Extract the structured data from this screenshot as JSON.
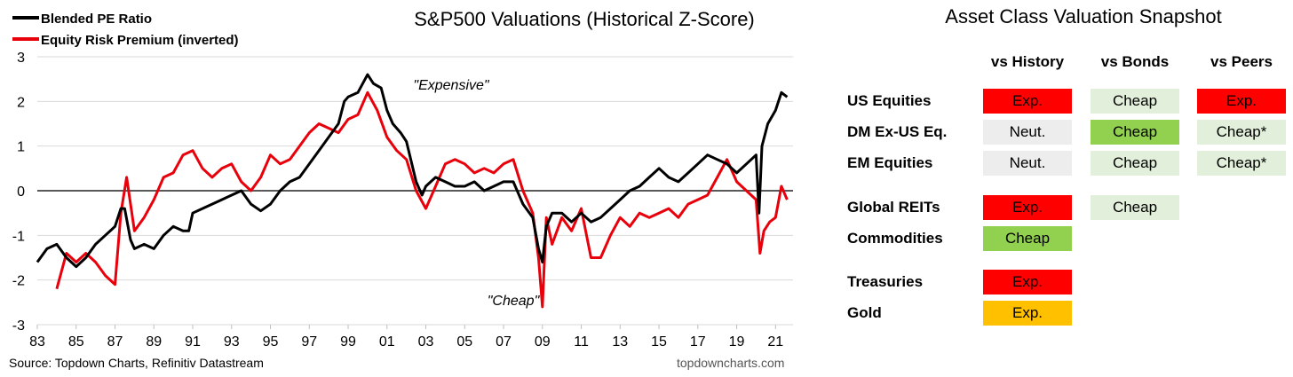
{
  "chart_data": {
    "type": "line",
    "title": "S&P500 Valuations (Historical Z-Score)",
    "ylim": [
      -3,
      3
    ],
    "yticks": [
      3,
      2,
      1,
      0,
      -1,
      -2,
      -3
    ],
    "xlim": [
      1983,
      2021.9
    ],
    "xticks": [
      1983,
      1985,
      1987,
      1989,
      1991,
      1993,
      1995,
      1997,
      1999,
      2001,
      2003,
      2005,
      2007,
      2009,
      2011,
      2013,
      2015,
      2017,
      2019,
      2021
    ],
    "xtick_labels": [
      "83",
      "85",
      "87",
      "89",
      "91",
      "93",
      "95",
      "97",
      "99",
      "01",
      "03",
      "05",
      "07",
      "09",
      "11",
      "13",
      "15",
      "17",
      "19",
      "21"
    ],
    "grid": true,
    "legend_position": "top-left",
    "annotations": [
      "\"Expensive\"",
      "\"Cheap\""
    ],
    "series": [
      {
        "name": "Blended PE Ratio",
        "color": "#000000",
        "x": [
          1983.0,
          1983.5,
          1984.0,
          1984.5,
          1985.0,
          1985.5,
          1986.0,
          1986.5,
          1987.0,
          1987.3,
          1987.5,
          1987.8,
          1988.0,
          1988.5,
          1989.0,
          1989.5,
          1990.0,
          1990.5,
          1990.8,
          1991.0,
          1991.5,
          1992.0,
          1992.5,
          1993.0,
          1993.5,
          1994.0,
          1994.5,
          1995.0,
          1995.5,
          1996.0,
          1996.5,
          1997.0,
          1997.5,
          1998.0,
          1998.5,
          1998.8,
          1999.0,
          1999.5,
          2000.0,
          2000.3,
          2000.7,
          2001.0,
          2001.3,
          2001.7,
          2002.0,
          2002.5,
          2002.8,
          2003.0,
          2003.5,
          2004.0,
          2004.5,
          2005.0,
          2005.5,
          2006.0,
          2006.5,
          2007.0,
          2007.5,
          2008.0,
          2008.5,
          2008.8,
          2009.0,
          2009.2,
          2009.5,
          2010.0,
          2010.5,
          2011.0,
          2011.5,
          2012.0,
          2012.5,
          2013.0,
          2013.5,
          2014.0,
          2014.5,
          2015.0,
          2015.5,
          2016.0,
          2016.5,
          2017.0,
          2017.5,
          2018.0,
          2018.5,
          2019.0,
          2019.5,
          2020.0,
          2020.15,
          2020.3,
          2020.6,
          2021.0,
          2021.3,
          2021.6
        ],
        "values": [
          -1.6,
          -1.3,
          -1.2,
          -1.5,
          -1.7,
          -1.5,
          -1.2,
          -1.0,
          -0.8,
          -0.4,
          -0.4,
          -1.1,
          -1.3,
          -1.2,
          -1.3,
          -1.0,
          -0.8,
          -0.9,
          -0.9,
          -0.5,
          -0.4,
          -0.3,
          -0.2,
          -0.1,
          0.0,
          -0.3,
          -0.45,
          -0.3,
          0.0,
          0.2,
          0.3,
          0.6,
          0.9,
          1.2,
          1.5,
          2.0,
          2.1,
          2.2,
          2.6,
          2.4,
          2.3,
          1.8,
          1.5,
          1.3,
          1.1,
          0.2,
          -0.1,
          0.1,
          0.3,
          0.2,
          0.1,
          0.1,
          0.2,
          0.0,
          0.1,
          0.2,
          0.2,
          -0.3,
          -0.6,
          -1.3,
          -1.6,
          -0.8,
          -0.5,
          -0.5,
          -0.7,
          -0.5,
          -0.7,
          -0.6,
          -0.4,
          -0.2,
          0.0,
          0.1,
          0.3,
          0.5,
          0.3,
          0.2,
          0.4,
          0.6,
          0.8,
          0.7,
          0.6,
          0.4,
          0.6,
          0.8,
          -0.5,
          1.0,
          1.5,
          1.8,
          2.2,
          2.1
        ]
      },
      {
        "name": "Equity Risk Premium (inverted)",
        "color": "#e8000b",
        "x": [
          1984.0,
          1984.5,
          1985.0,
          1985.5,
          1986.0,
          1986.5,
          1987.0,
          1987.3,
          1987.6,
          1988.0,
          1988.5,
          1989.0,
          1989.5,
          1990.0,
          1990.5,
          1991.0,
          1991.5,
          1992.0,
          1992.5,
          1993.0,
          1993.5,
          1994.0,
          1994.5,
          1995.0,
          1995.5,
          1996.0,
          1996.5,
          1997.0,
          1997.5,
          1998.0,
          1998.5,
          1999.0,
          1999.5,
          2000.0,
          2000.5,
          2001.0,
          2001.5,
          2002.0,
          2002.5,
          2003.0,
          2003.5,
          2004.0,
          2004.5,
          2005.0,
          2005.5,
          2006.0,
          2006.5,
          2007.0,
          2007.5,
          2008.0,
          2008.5,
          2008.8,
          2009.0,
          2009.2,
          2009.5,
          2010.0,
          2010.5,
          2011.0,
          2011.5,
          2012.0,
          2012.5,
          2013.0,
          2013.5,
          2014.0,
          2014.5,
          2015.0,
          2015.5,
          2016.0,
          2016.5,
          2017.0,
          2017.5,
          2018.0,
          2018.5,
          2019.0,
          2019.5,
          2020.0,
          2020.2,
          2020.4,
          2020.7,
          2021.0,
          2021.3,
          2021.6
        ],
        "values": [
          -2.2,
          -1.4,
          -1.6,
          -1.4,
          -1.6,
          -1.9,
          -2.1,
          -0.5,
          0.3,
          -0.9,
          -0.6,
          -0.2,
          0.3,
          0.4,
          0.8,
          0.9,
          0.5,
          0.3,
          0.5,
          0.6,
          0.2,
          0.0,
          0.3,
          0.8,
          0.6,
          0.7,
          1.0,
          1.3,
          1.5,
          1.4,
          1.3,
          1.6,
          1.7,
          2.2,
          1.8,
          1.2,
          0.9,
          0.7,
          0.0,
          -0.4,
          0.1,
          0.6,
          0.7,
          0.6,
          0.4,
          0.5,
          0.4,
          0.6,
          0.7,
          0.0,
          -0.5,
          -1.5,
          -2.6,
          -0.6,
          -1.2,
          -0.6,
          -0.9,
          -0.4,
          -1.5,
          -1.5,
          -1.0,
          -0.6,
          -0.8,
          -0.5,
          -0.6,
          -0.5,
          -0.4,
          -0.6,
          -0.3,
          -0.2,
          -0.1,
          0.3,
          0.7,
          0.2,
          0.0,
          -0.2,
          -1.4,
          -0.9,
          -0.7,
          -0.6,
          0.1,
          -0.2
        ]
      }
    ]
  },
  "footer": {
    "source": "Source: Topdown Charts, Refinitiv Datastream",
    "site": "topdowncharts.com"
  },
  "snapshot": {
    "title": "Asset Class Valuation Snapshot",
    "columns": [
      "vs History",
      "vs Bonds",
      "vs Peers"
    ],
    "colors": {
      "Exp.": "#ff0000",
      "Cheap": "#e2efda",
      "Neut.": "#ededed",
      "CheapStrong": "#92d050",
      "Cheap*": "#e2efda",
      "ExpGold": "#ffc000"
    },
    "rows": [
      {
        "label": "US Equities",
        "cells": [
          {
            "text": "Exp.",
            "style": "Exp."
          },
          {
            "text": "Cheap",
            "style": "Cheap"
          },
          {
            "text": "Exp.",
            "style": "Exp."
          }
        ]
      },
      {
        "label": "DM Ex-US Eq.",
        "cells": [
          {
            "text": "Neut.",
            "style": "Neut."
          },
          {
            "text": "Cheap",
            "style": "CheapStrong"
          },
          {
            "text": "Cheap*",
            "style": "Cheap*"
          }
        ]
      },
      {
        "label": "EM Equities",
        "cells": [
          {
            "text": "Neut.",
            "style": "Neut."
          },
          {
            "text": "Cheap",
            "style": "Cheap"
          },
          {
            "text": "Cheap*",
            "style": "Cheap*"
          }
        ]
      },
      {
        "label": "Global REITs",
        "cells": [
          {
            "text": "Exp.",
            "style": "Exp."
          },
          {
            "text": "Cheap",
            "style": "Cheap"
          },
          null
        ]
      },
      {
        "label": "Commodities",
        "cells": [
          {
            "text": "Cheap",
            "style": "CheapStrong"
          },
          null,
          null
        ]
      },
      {
        "label": "Treasuries",
        "cells": [
          {
            "text": "Exp.",
            "style": "Exp."
          },
          null,
          null
        ]
      },
      {
        "label": "Gold",
        "cells": [
          {
            "text": "Exp.",
            "style": "ExpGold"
          },
          null,
          null
        ]
      }
    ]
  }
}
